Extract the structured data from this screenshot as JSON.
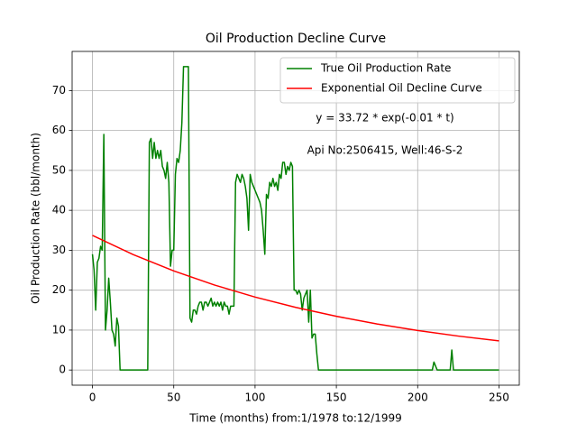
{
  "chart_data": {
    "type": "line",
    "title": "Oil Production Decline Curve",
    "xlabel": "Time (months) from:1/1978 to:12/1999",
    "ylabel": "Oil Production Rate (bbl/month)",
    "annotations": [
      "y = 33.72 * exp(-0.01 * t)",
      "Api No:2506415, Well:46-S-2"
    ],
    "xlim": [
      -12.5,
      262.5
    ],
    "ylim": [
      -3.8,
      79.8
    ],
    "xticks": [
      0,
      50,
      100,
      150,
      200,
      250
    ],
    "yticks": [
      0,
      10,
      20,
      30,
      40,
      50,
      60,
      70
    ],
    "grid": true,
    "legend": "upper right",
    "series": [
      {
        "name": "True Oil Production Rate",
        "color": "#008000",
        "x": [
          0,
          1,
          2,
          3,
          4,
          5,
          6,
          7,
          8,
          9,
          10,
          11,
          12,
          13,
          14,
          15,
          16,
          17,
          34,
          35,
          36,
          37,
          38,
          39,
          40,
          41,
          42,
          43,
          44,
          45,
          46,
          47,
          48,
          49,
          50,
          51,
          52,
          53,
          54,
          55,
          56,
          59,
          60,
          61,
          62,
          63,
          64,
          65,
          66,
          67,
          68,
          69,
          70,
          71,
          72,
          73,
          74,
          75,
          76,
          77,
          78,
          79,
          80,
          81,
          82,
          83,
          84,
          85,
          86,
          87,
          88,
          89,
          90,
          91,
          92,
          93,
          94,
          95,
          96,
          97,
          98,
          99,
          100,
          101,
          102,
          103,
          104,
          105,
          106,
          107,
          108,
          109,
          110,
          111,
          112,
          113,
          114,
          115,
          116,
          117,
          118,
          119,
          120,
          121,
          122,
          123,
          124,
          125,
          126,
          127,
          128,
          129,
          130,
          131,
          132,
          133,
          134,
          135,
          136,
          137,
          138,
          139,
          209,
          210,
          211,
          212,
          220,
          221,
          222,
          250
        ],
        "values": [
          29,
          25,
          15,
          27,
          28,
          31,
          30,
          59,
          10,
          15,
          23,
          17,
          10,
          9,
          6,
          13,
          11,
          0,
          0,
          57,
          58,
          53,
          57,
          53,
          55,
          53,
          55,
          51,
          50,
          48,
          52,
          47,
          26,
          30,
          30,
          49,
          53,
          52,
          55,
          62,
          76,
          76,
          13,
          12,
          15,
          15,
          14,
          16,
          17,
          17,
          15,
          17,
          17,
          16,
          17,
          18,
          16,
          17,
          16,
          17,
          16,
          17,
          15,
          17,
          16,
          16,
          14,
          16,
          16,
          16,
          47,
          49,
          48,
          47,
          49,
          48,
          46,
          43,
          35,
          49,
          47,
          46,
          45,
          44,
          43,
          42,
          40,
          35,
          29,
          44,
          43,
          47,
          46,
          48,
          46,
          47,
          45,
          49,
          48,
          52,
          52,
          49,
          51,
          50,
          52,
          51,
          20,
          20,
          19,
          20,
          19,
          15,
          18,
          19,
          20,
          12,
          20,
          8,
          9,
          9,
          4,
          0,
          0,
          2,
          1,
          0,
          0,
          5,
          0,
          0
        ]
      },
      {
        "name": "Exponential Oil Decline Curve",
        "color": "#ff0000",
        "x": [
          0,
          25,
          50,
          75,
          100,
          125,
          150,
          175,
          200,
          225,
          250
        ],
        "values": [
          33.72,
          28.93,
          24.82,
          21.3,
          18.27,
          15.68,
          13.45,
          11.54,
          9.9,
          8.5,
          7.29
        ]
      }
    ]
  }
}
